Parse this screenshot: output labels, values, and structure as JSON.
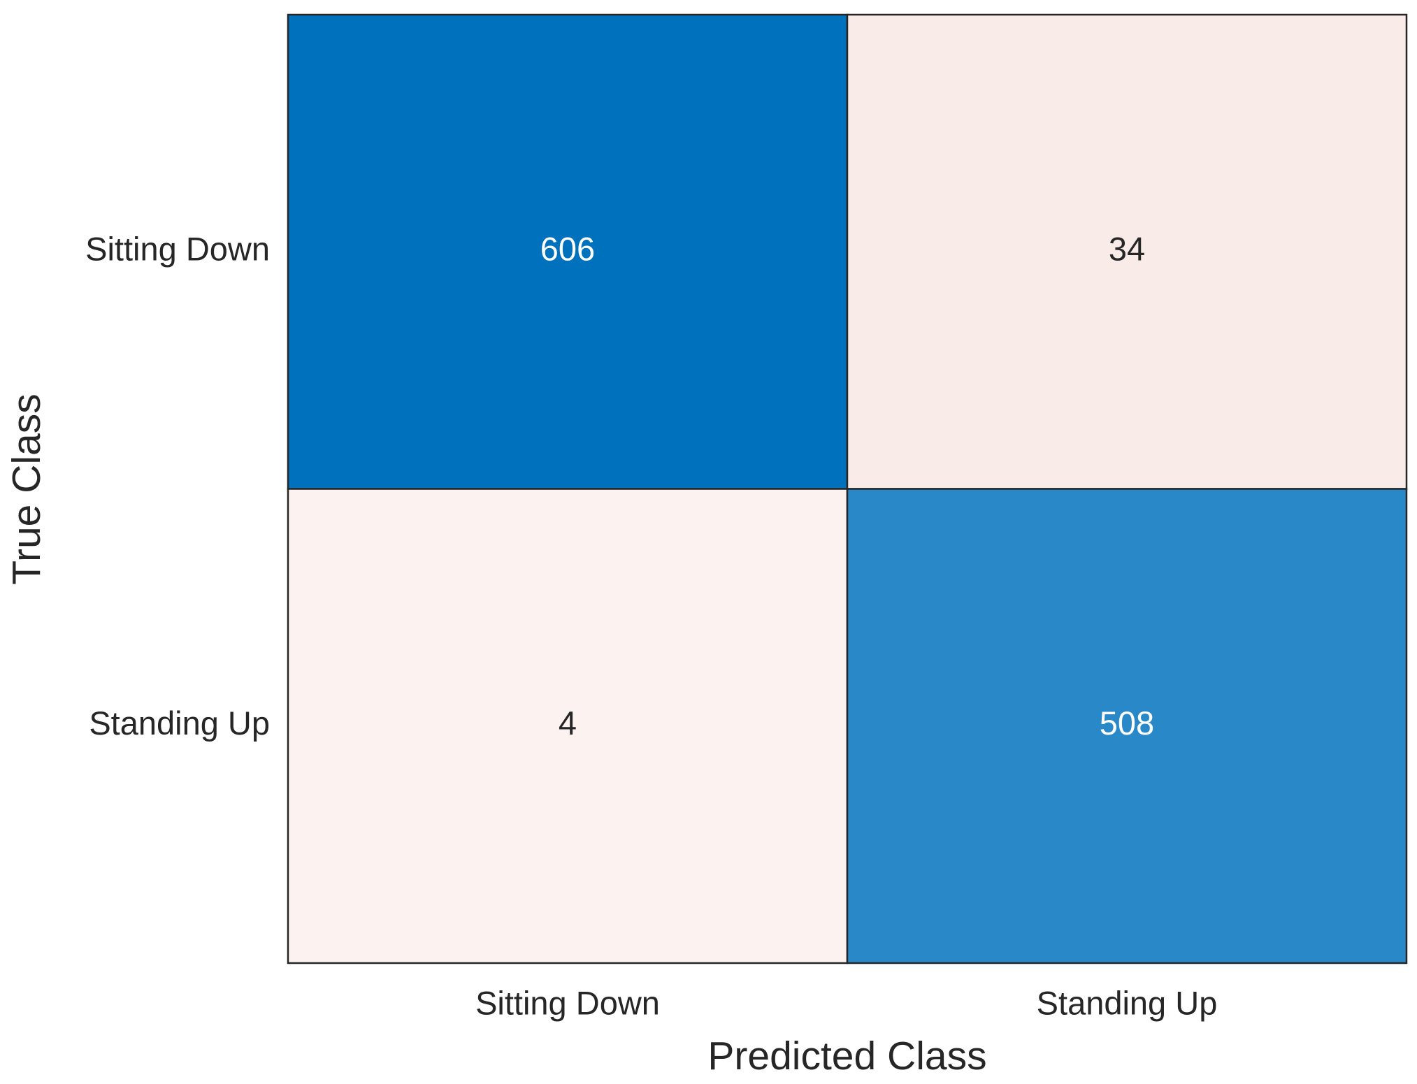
{
  "chart_data": {
    "type": "heatmap",
    "xlabel": "Predicted Class",
    "ylabel": "True Class",
    "x_categories": [
      "Sitting Down",
      "Standing Up"
    ],
    "y_categories": [
      "Sitting Down",
      "Standing Up"
    ],
    "values": [
      [
        606,
        34
      ],
      [
        4,
        508
      ]
    ],
    "colors": [
      [
        "#0072bd",
        "#f9ece8"
      ],
      [
        "#fcf3f1",
        "#2888c8"
      ]
    ]
  }
}
